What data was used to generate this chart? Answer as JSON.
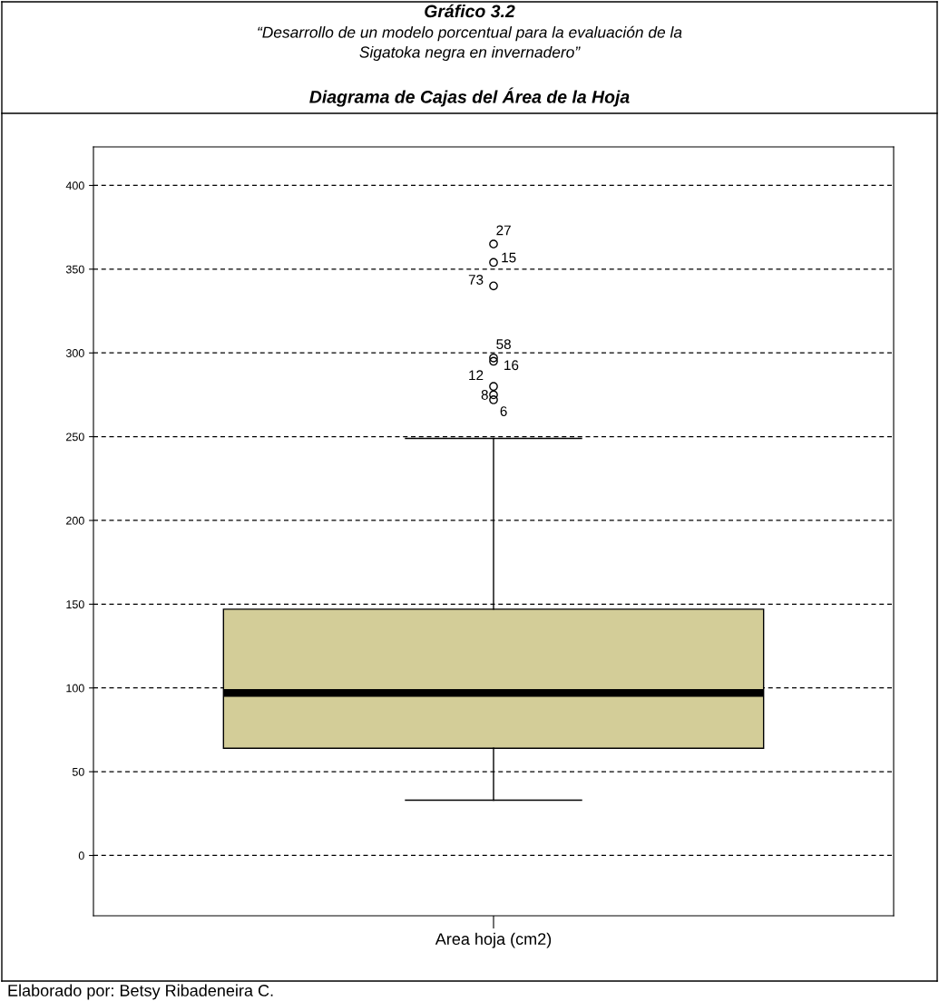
{
  "chart_data": {
    "type": "box",
    "title": "Diagrama de Cajas del Área de la Hoja",
    "subtitle": "Gráfico 3.2\n“Desarrollo de un modelo porcentual para la evaluación de la\nSigatoka negra en invernadero”",
    "categories": [
      "Area hoja (cm2)"
    ],
    "boxes": [
      {
        "low": 33,
        "q1": 64,
        "median": 97,
        "q3": 147,
        "high": 249,
        "outliers": [
          365,
          354,
          340,
          297,
          295,
          280,
          275,
          272
        ]
      }
    ],
    "colors": [
      "#d3cd98"
    ],
    "ylim": [
      -36,
      423
    ],
    "yticks": [
      0,
      50,
      100,
      150,
      200,
      250,
      300,
      350,
      400
    ],
    "grid": "y",
    "annotations": [
      "27",
      "15",
      "73",
      "58",
      "16",
      "12",
      "8",
      "6",
      "Elaborado por: Betsy Ribadeneira C."
    ]
  }
}
